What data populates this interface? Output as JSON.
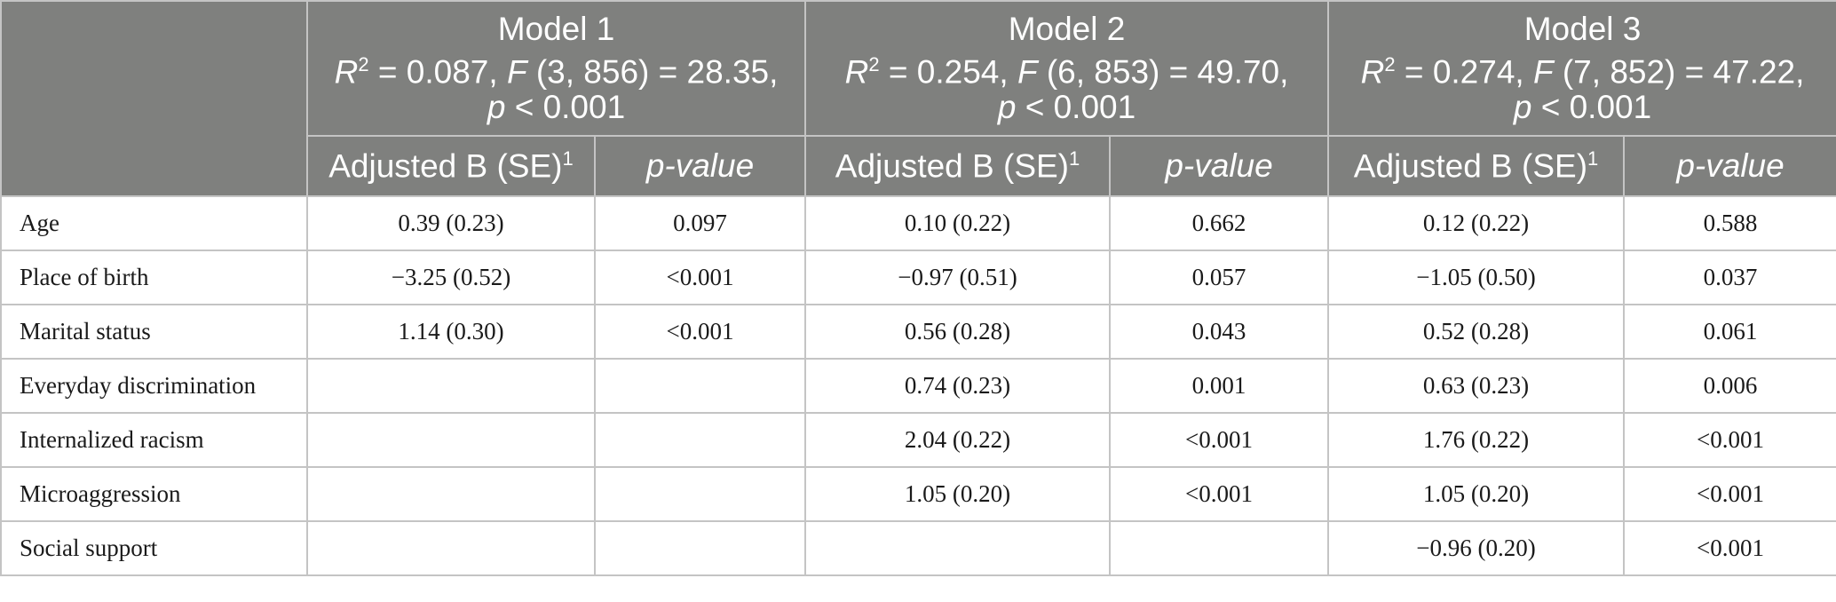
{
  "models": [
    {
      "name": "Model 1",
      "r2": "0.087",
      "df": "(3, 856)",
      "f": "28.35",
      "p": "< 0.001"
    },
    {
      "name": "Model 2",
      "r2": "0.254",
      "df": "(6, 853)",
      "f": "49.70",
      "p": "< 0.001"
    },
    {
      "name": "Model 3",
      "r2": "0.274",
      "df": "(7, 852)",
      "f": "47.22",
      "p": "< 0.001"
    }
  ],
  "subheaders": {
    "coef": "Adjusted B (SE)",
    "coef_sup": "1",
    "p": "p-value"
  },
  "rows": [
    {
      "label": "Age",
      "cells": [
        "0.39 (0.23)",
        "0.097",
        "0.10 (0.22)",
        "0.662",
        "0.12 (0.22)",
        "0.588"
      ]
    },
    {
      "label": "Place of birth",
      "cells": [
        "−3.25 (0.52)",
        "<0.001",
        "−0.97 (0.51)",
        "0.057",
        "−1.05 (0.50)",
        "0.037"
      ]
    },
    {
      "label": "Marital status",
      "cells": [
        "1.14 (0.30)",
        "<0.001",
        "0.56 (0.28)",
        "0.043",
        "0.52 (0.28)",
        "0.061"
      ]
    },
    {
      "label": "Everyday discrimination",
      "cells": [
        "",
        "",
        "0.74 (0.23)",
        "0.001",
        "0.63 (0.23)",
        "0.006"
      ]
    },
    {
      "label": "Internalized racism",
      "cells": [
        "",
        "",
        "2.04 (0.22)",
        "<0.001",
        "1.76 (0.22)",
        "<0.001"
      ]
    },
    {
      "label": "Microaggression",
      "cells": [
        "",
        "",
        "1.05 (0.20)",
        "<0.001",
        "1.05 (0.20)",
        "<0.001"
      ]
    },
    {
      "label": "Social support",
      "cells": [
        "",
        "",
        "",
        "",
        "−0.96 (0.20)",
        "<0.001"
      ]
    }
  ]
}
